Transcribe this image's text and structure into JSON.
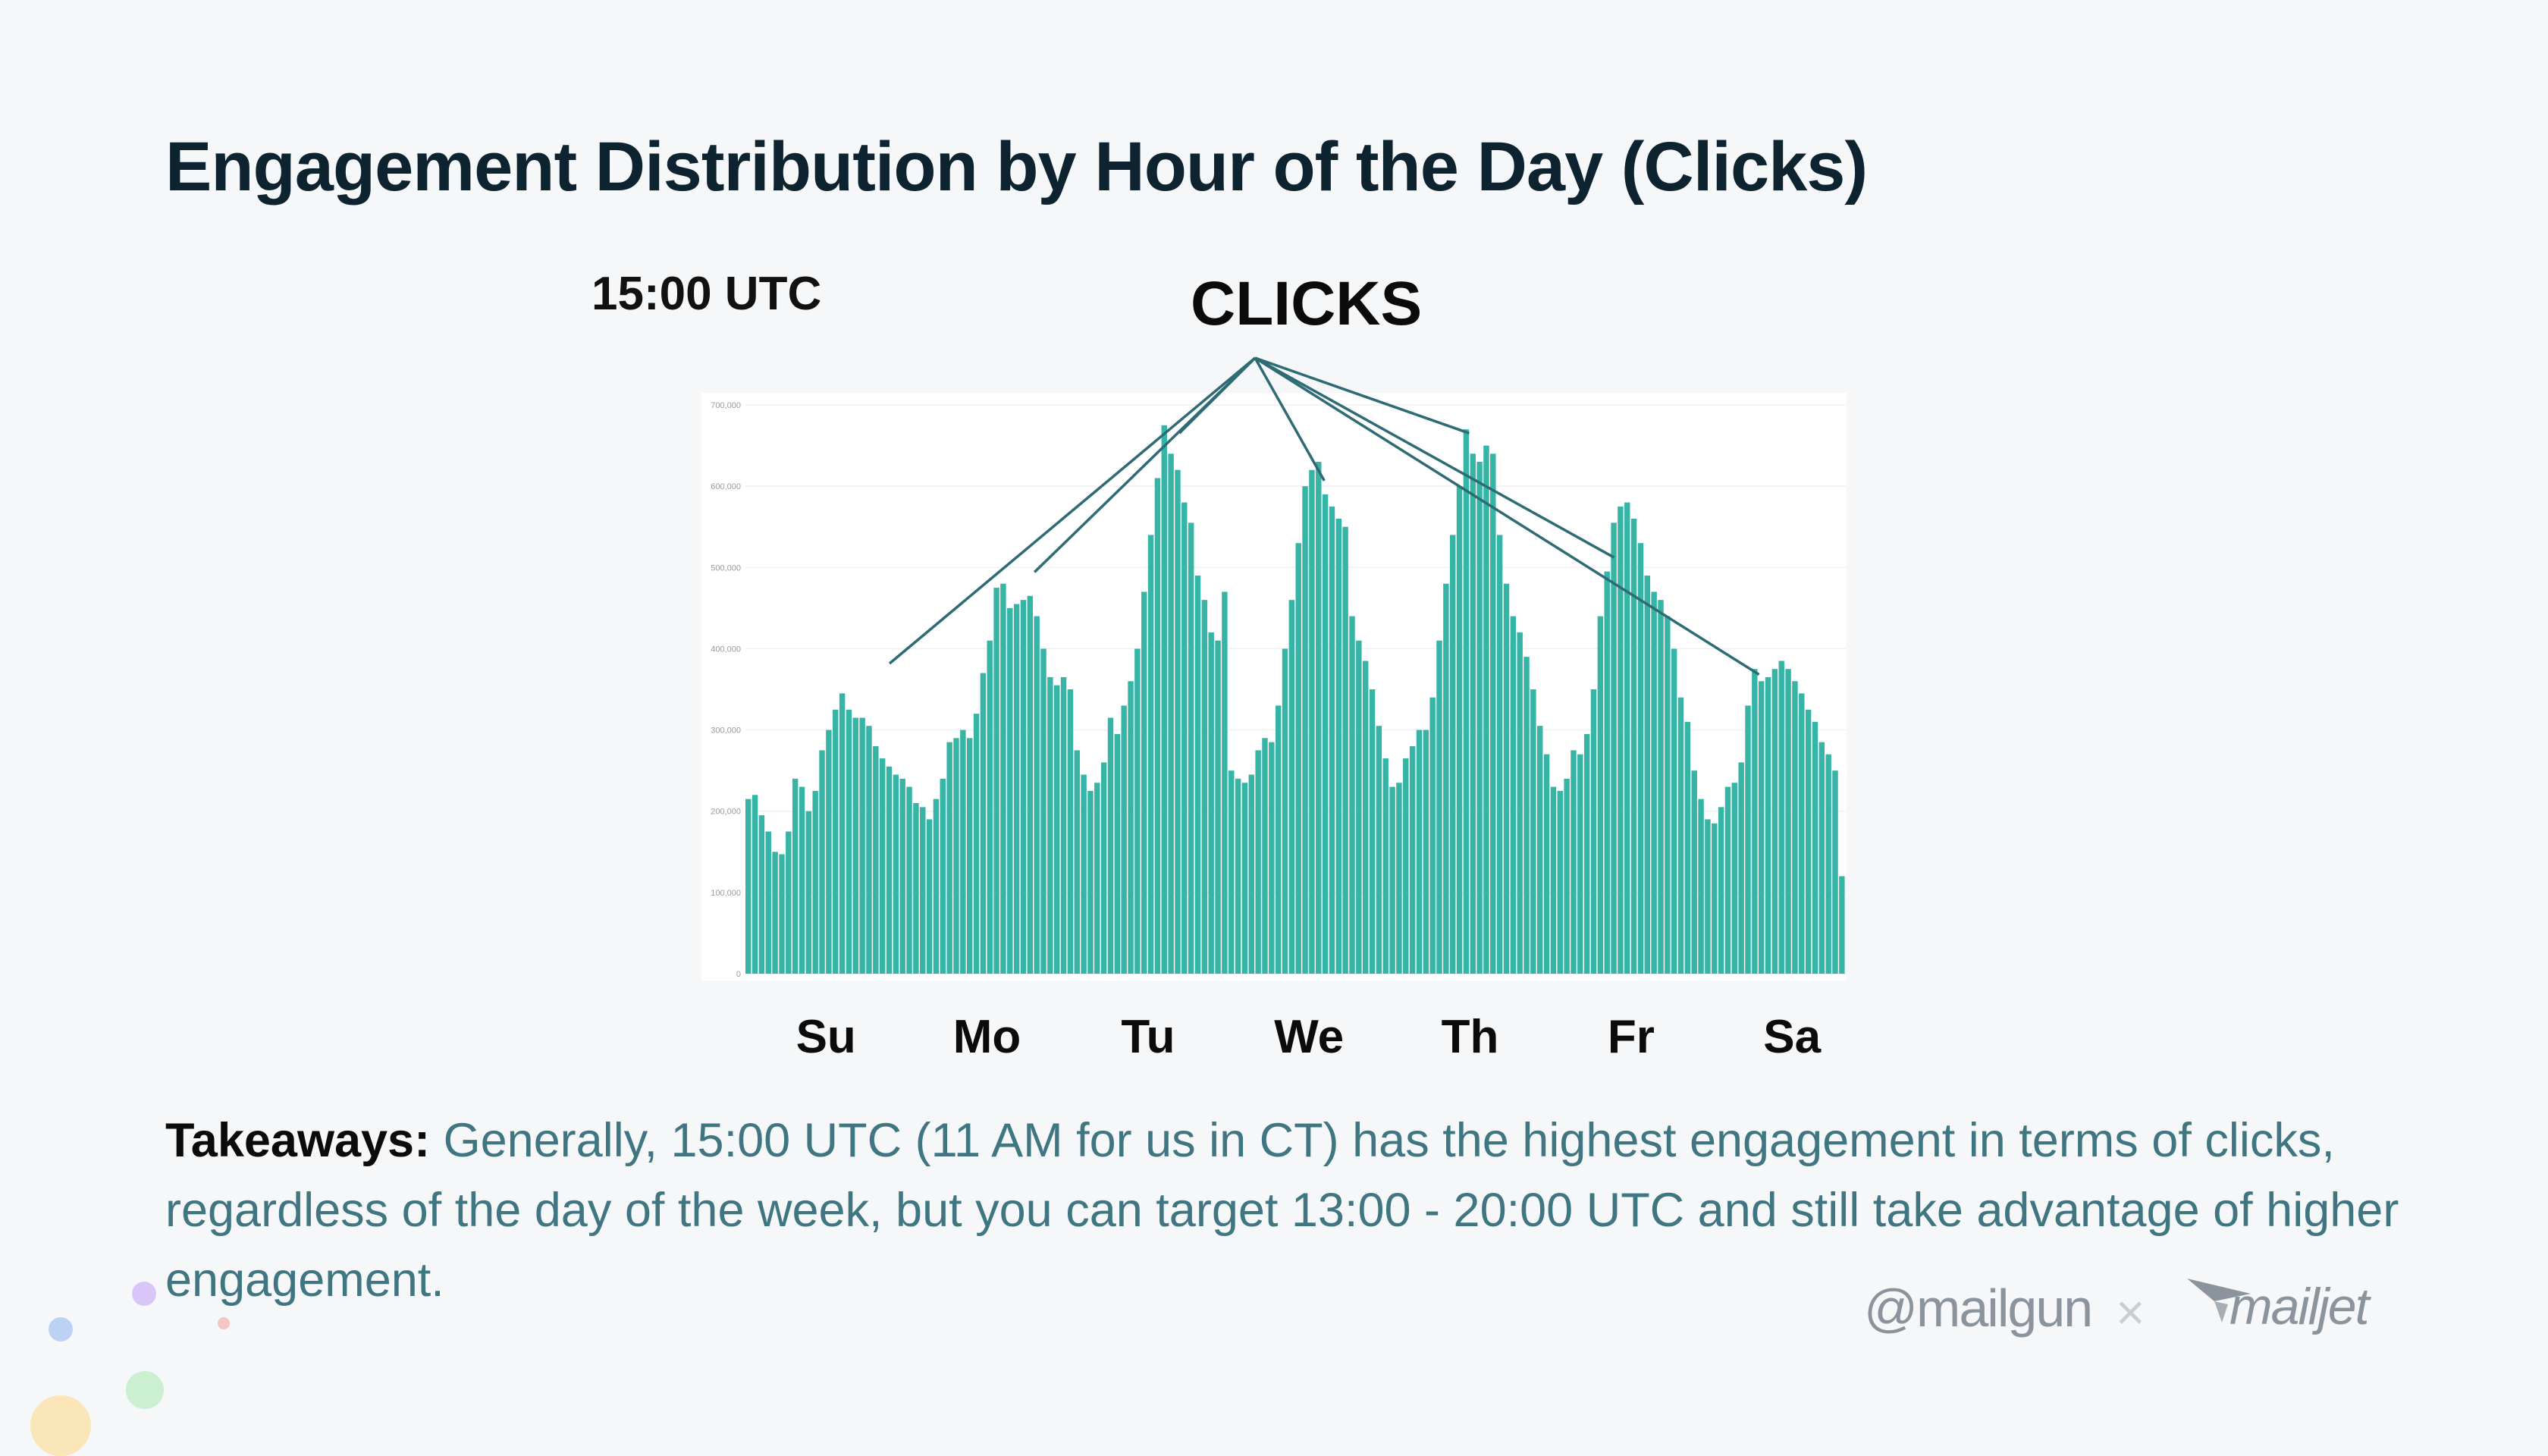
{
  "title": "Engagement Distribution by Hour of the Day (Clicks)",
  "callout": "15:00 UTC",
  "chart_heading": "CLICKS",
  "takeaways": {
    "lead": "Takeaways:",
    "text": " Generally, 15:00 UTC (11 AM for us in CT) has the highest engagement in terms of clicks, regardless of the day of the week, but you can target 13:00 - 20:00 UTC and still take advantage of higher engagement."
  },
  "brands": {
    "mailgun": "@mailgun",
    "separator": "×",
    "mailjet": "mailjet"
  },
  "colors": {
    "bar": "#36b5a7",
    "annotation": "#2f6b74",
    "title": "#0e2330",
    "body": "#3f7682"
  },
  "chart_data": {
    "type": "bar",
    "ylim": [
      0,
      700000
    ],
    "yticks": [
      0,
      100000,
      200000,
      300000,
      400000,
      500000,
      600000,
      700000
    ],
    "ytick_labels": [
      "0",
      "100,000",
      "200,000",
      "300,000",
      "400,000",
      "500,000",
      "600,000",
      "700,000"
    ],
    "day_labels": [
      "Su",
      "Mo",
      "Tu",
      "We",
      "Th",
      "Fr",
      "Sa"
    ],
    "bins_per_day": 24,
    "values": [
      215000,
      220000,
      195000,
      175000,
      150000,
      147000,
      175000,
      240000,
      230000,
      200000,
      225000,
      275000,
      300000,
      325000,
      345000,
      325000,
      315000,
      315000,
      305000,
      280000,
      265000,
      255000,
      245000,
      240000,
      230000,
      210000,
      205000,
      190000,
      215000,
      240000,
      285000,
      290000,
      300000,
      290000,
      320000,
      370000,
      410000,
      475000,
      480000,
      450000,
      455000,
      460000,
      465000,
      440000,
      400000,
      365000,
      355000,
      365000,
      350000,
      275000,
      245000,
      225000,
      235000,
      260000,
      315000,
      295000,
      330000,
      360000,
      400000,
      470000,
      540000,
      610000,
      675000,
      640000,
      620000,
      580000,
      555000,
      490000,
      460000,
      420000,
      410000,
      470000,
      250000,
      240000,
      235000,
      245000,
      275000,
      290000,
      285000,
      330000,
      400000,
      460000,
      530000,
      600000,
      620000,
      630000,
      590000,
      575000,
      560000,
      550000,
      440000,
      410000,
      385000,
      350000,
      305000,
      265000,
      230000,
      235000,
      265000,
      280000,
      300000,
      300000,
      340000,
      410000,
      480000,
      540000,
      600000,
      670000,
      640000,
      630000,
      650000,
      640000,
      540000,
      480000,
      440000,
      420000,
      390000,
      350000,
      305000,
      270000,
      230000,
      225000,
      240000,
      275000,
      270000,
      295000,
      350000,
      440000,
      495000,
      555000,
      575000,
      580000,
      560000,
      530000,
      490000,
      470000,
      460000,
      440000,
      400000,
      340000,
      310000,
      250000,
      215000,
      190000,
      185000,
      205000,
      230000,
      235000,
      260000,
      330000,
      375000,
      360000,
      365000,
      375000,
      385000,
      375000,
      360000,
      345000,
      325000,
      310000,
      285000,
      270000,
      250000,
      120000
    ]
  }
}
